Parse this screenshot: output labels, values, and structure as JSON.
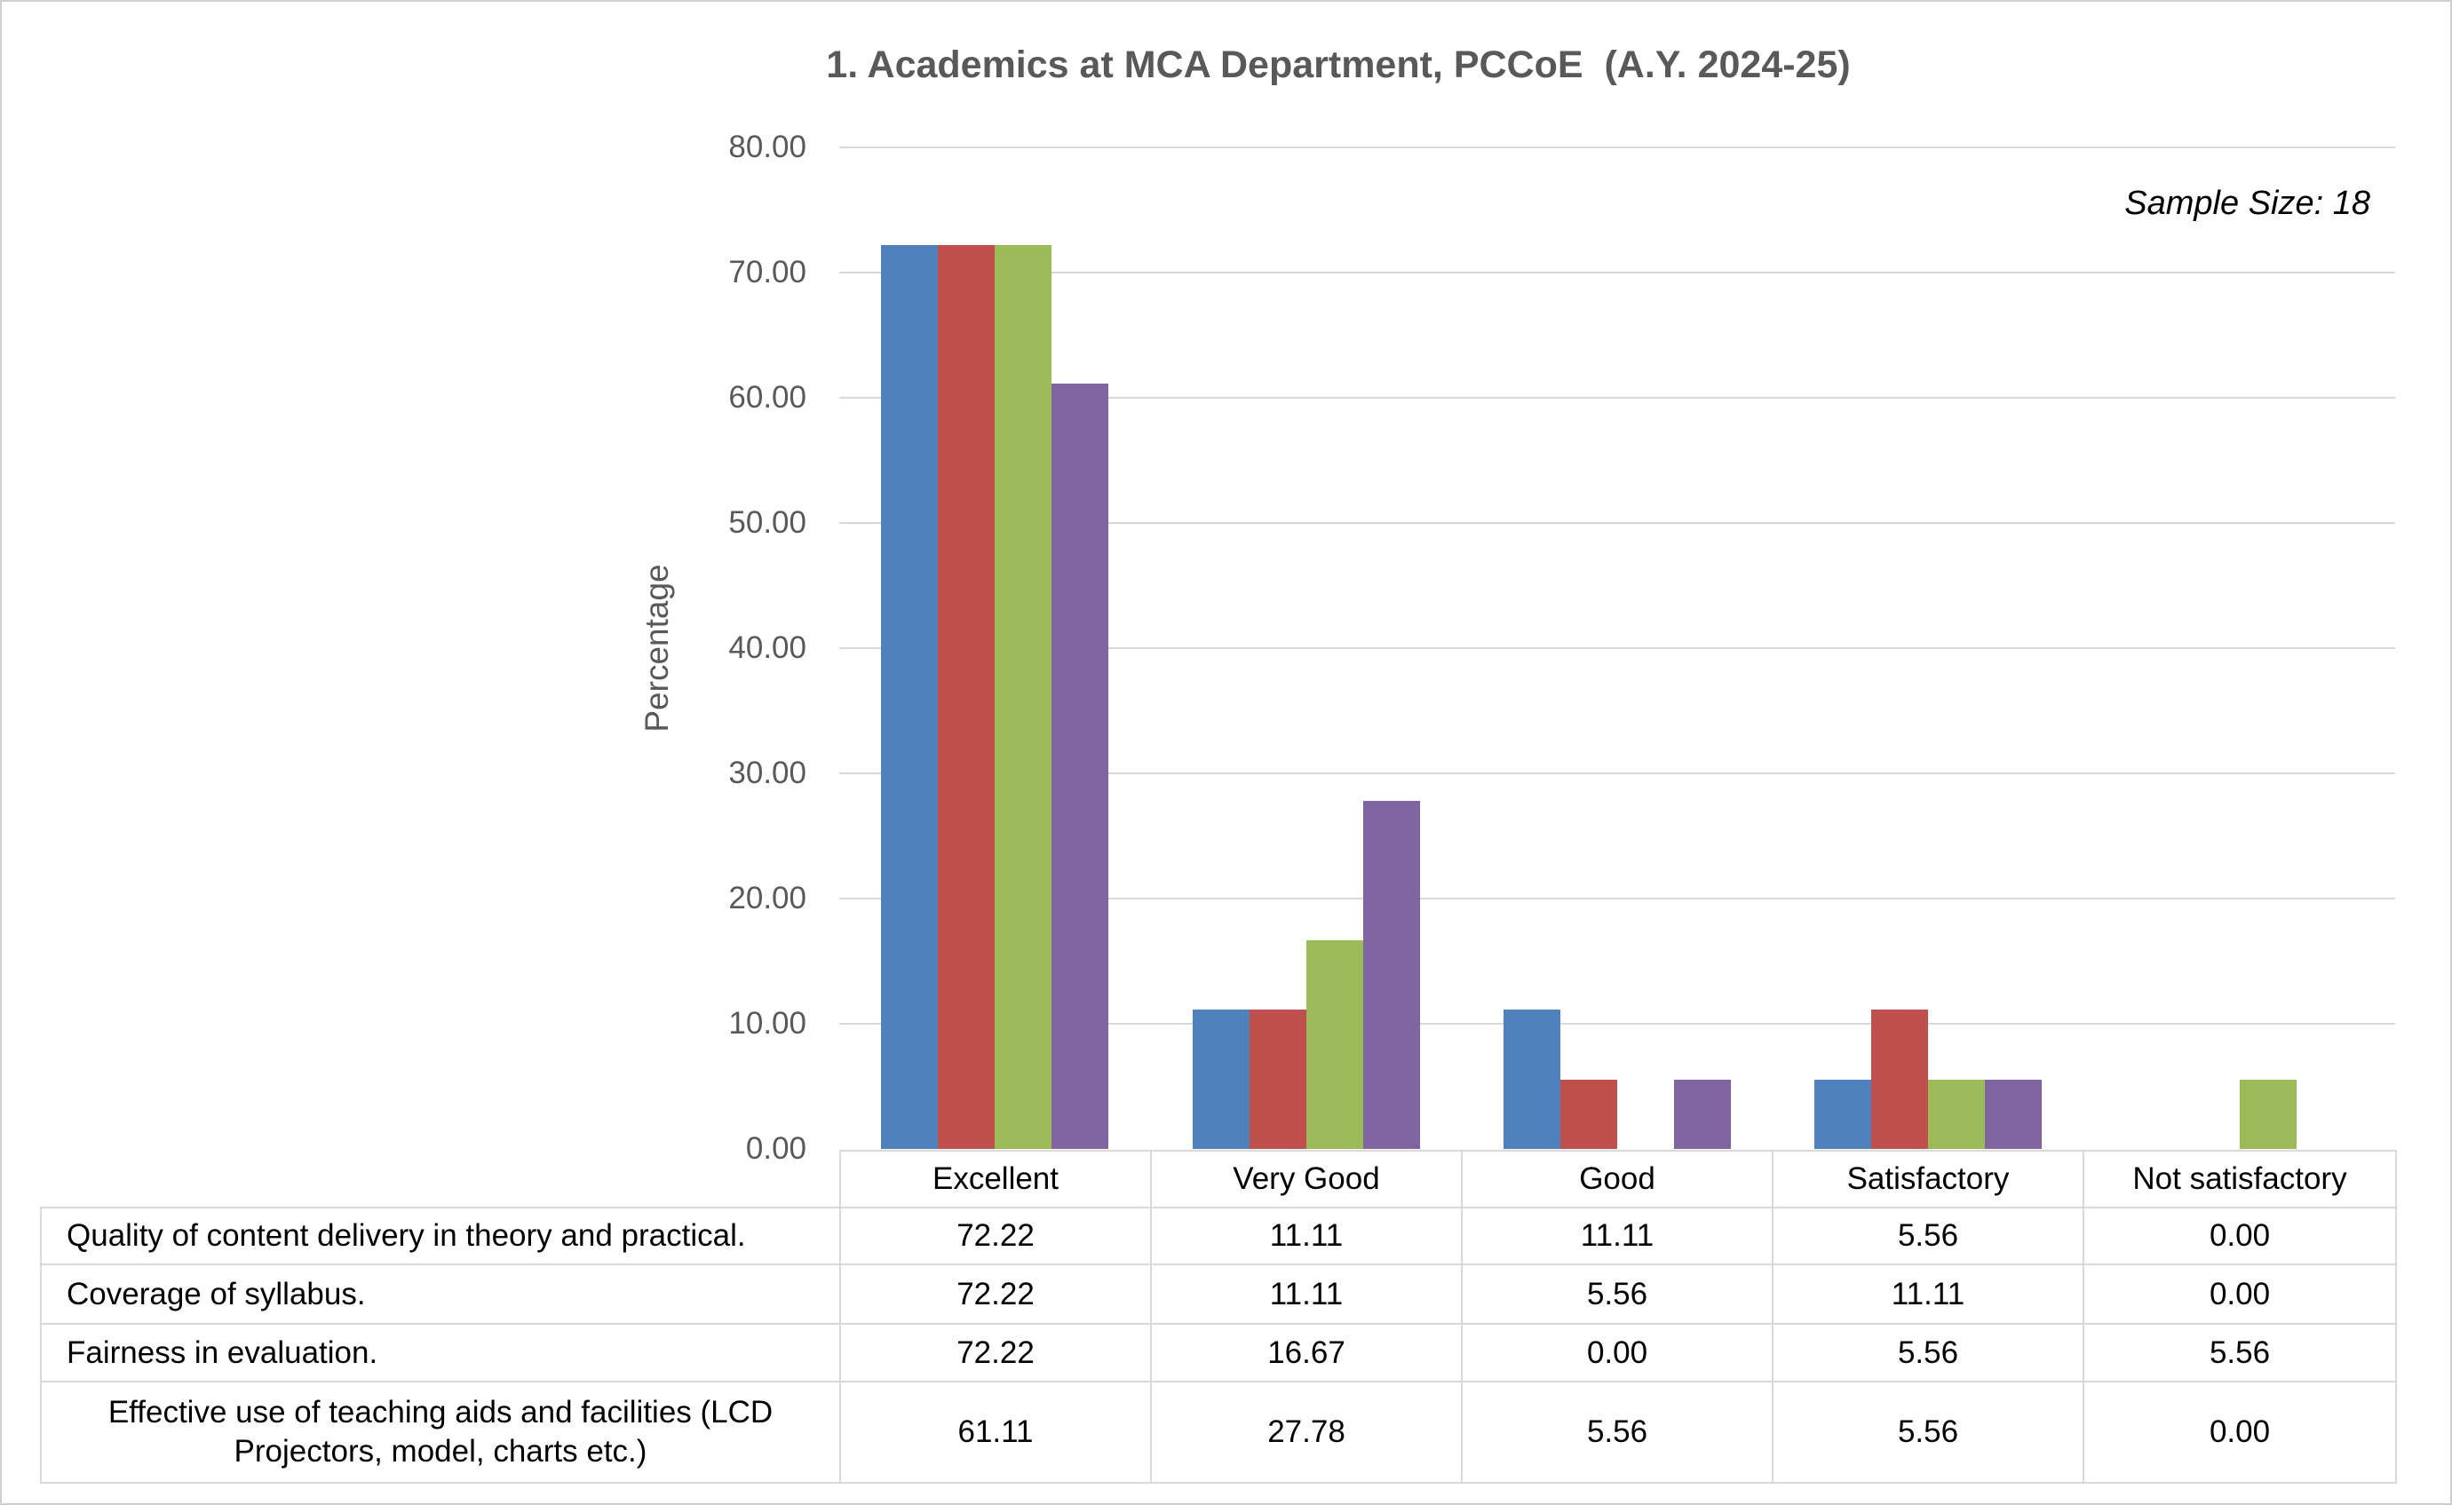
{
  "chart_data": {
    "type": "bar",
    "title": "1. Academics at MCA Department, PCCoE  (A.Y. 2024-25)",
    "annotation": "Sample Size: 18",
    "ylabel": "Percentage",
    "xlabel": "",
    "ylim": [
      0,
      80
    ],
    "ytick_step": 10,
    "ytick_decimals": 2,
    "grid": true,
    "legend_position": "data-table-below-chart",
    "categories": [
      "Excellent",
      "Very Good",
      "Good",
      "Satisfactory",
      "Not satisfactory"
    ],
    "series": [
      {
        "name": "Quality of content delivery in theory and practical.",
        "color": "#4F81BD",
        "values": [
          72.22,
          11.11,
          11.11,
          5.56,
          0.0
        ]
      },
      {
        "name": "Coverage of syllabus.",
        "color": "#C0504D",
        "values": [
          72.22,
          11.11,
          5.56,
          11.11,
          0.0
        ]
      },
      {
        "name": "Fairness in evaluation.",
        "color": "#9BBB59",
        "values": [
          72.22,
          16.67,
          0.0,
          5.56,
          5.56
        ]
      },
      {
        "name": "Effective use of teaching aids and facilities (LCD Projectors, model, charts etc.)",
        "color": "#8064A2",
        "values": [
          61.11,
          27.78,
          5.56,
          5.56,
          0.0
        ]
      }
    ]
  },
  "colors": {
    "title_text": "#595959",
    "axis_text": "#595959",
    "gridline": "#D9D9D9",
    "table_border": "#D9D9D9",
    "table_text": "#000000",
    "background": "#FFFFFF",
    "frame_border": "#D0CECE"
  }
}
